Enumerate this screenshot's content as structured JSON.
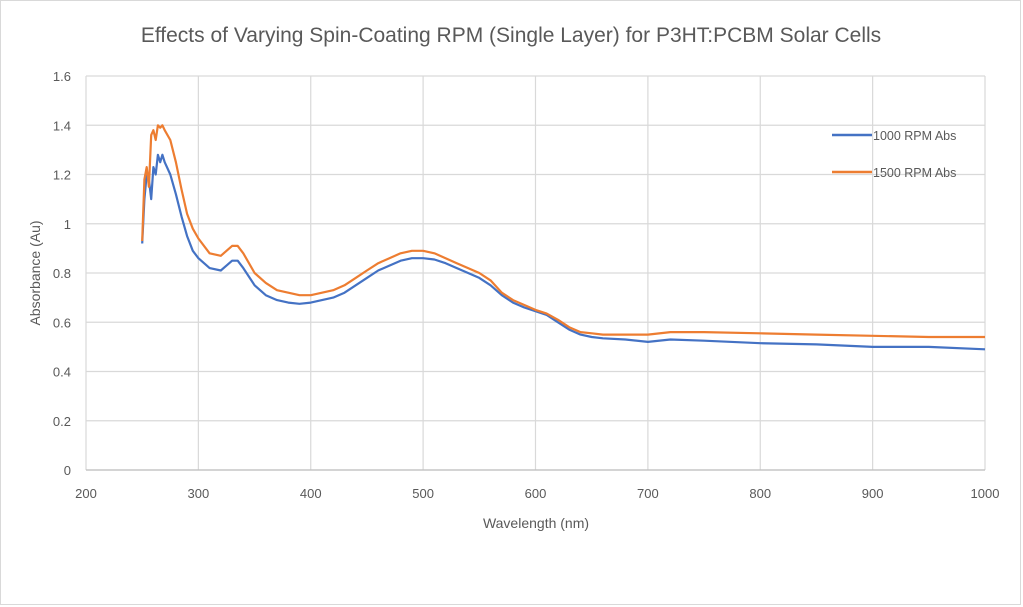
{
  "chart_data": {
    "type": "line",
    "title": "Effects of Varying Spin-Coating RPM (Single Layer) for P3HT:PCBM Solar Cells",
    "xlabel": "Wavelength (nm)",
    "ylabel": "Absorbance (Au)",
    "xlim": [
      200,
      1000
    ],
    "ylim": [
      0,
      1.6
    ],
    "x_ticks": [
      200,
      300,
      400,
      500,
      600,
      700,
      800,
      900,
      1000
    ],
    "y_ticks": [
      0,
      0.2,
      0.4,
      0.6,
      0.8,
      1,
      1.2,
      1.4,
      1.6
    ],
    "x_tick_labels": [
      "200",
      "300",
      "400",
      "500",
      "600",
      "700",
      "800",
      "900",
      "1000"
    ],
    "y_tick_labels": [
      "0",
      "0.2",
      "0.4",
      "0.6",
      "0.8",
      "1",
      "1.2",
      "1.4",
      "1.6"
    ],
    "grid": true,
    "legend_position": "top-right",
    "x": [
      250,
      252,
      254,
      256,
      258,
      260,
      262,
      264,
      266,
      268,
      270,
      275,
      280,
      285,
      290,
      295,
      300,
      310,
      320,
      325,
      330,
      335,
      340,
      350,
      360,
      370,
      380,
      390,
      400,
      410,
      420,
      430,
      440,
      450,
      460,
      470,
      480,
      490,
      500,
      510,
      520,
      530,
      540,
      550,
      560,
      570,
      580,
      590,
      600,
      610,
      620,
      630,
      640,
      650,
      660,
      680,
      700,
      720,
      750,
      800,
      850,
      900,
      950,
      1000
    ],
    "series": [
      {
        "name": "1000 RPM Abs",
        "color": "#4472c4",
        "values": [
          0.92,
          1.1,
          1.2,
          1.18,
          1.1,
          1.23,
          1.2,
          1.28,
          1.25,
          1.28,
          1.25,
          1.2,
          1.12,
          1.03,
          0.95,
          0.89,
          0.86,
          0.82,
          0.81,
          0.83,
          0.85,
          0.85,
          0.82,
          0.75,
          0.71,
          0.69,
          0.68,
          0.675,
          0.68,
          0.69,
          0.7,
          0.72,
          0.75,
          0.78,
          0.81,
          0.83,
          0.85,
          0.86,
          0.86,
          0.855,
          0.84,
          0.82,
          0.8,
          0.78,
          0.75,
          0.71,
          0.68,
          0.66,
          0.645,
          0.63,
          0.6,
          0.57,
          0.55,
          0.54,
          0.535,
          0.53,
          0.52,
          0.53,
          0.525,
          0.515,
          0.51,
          0.5,
          0.5,
          0.49
        ]
      },
      {
        "name": "1500 RPM Abs",
        "color": "#ed7d31",
        "values": [
          0.93,
          1.18,
          1.23,
          1.15,
          1.36,
          1.38,
          1.34,
          1.4,
          1.39,
          1.4,
          1.38,
          1.34,
          1.25,
          1.14,
          1.04,
          0.98,
          0.94,
          0.88,
          0.87,
          0.89,
          0.91,
          0.91,
          0.88,
          0.8,
          0.76,
          0.73,
          0.72,
          0.71,
          0.71,
          0.72,
          0.73,
          0.75,
          0.78,
          0.81,
          0.84,
          0.86,
          0.88,
          0.89,
          0.89,
          0.88,
          0.86,
          0.84,
          0.82,
          0.8,
          0.77,
          0.72,
          0.69,
          0.67,
          0.65,
          0.635,
          0.61,
          0.58,
          0.56,
          0.555,
          0.55,
          0.55,
          0.55,
          0.56,
          0.56,
          0.555,
          0.55,
          0.545,
          0.54,
          0.54
        ]
      }
    ]
  }
}
